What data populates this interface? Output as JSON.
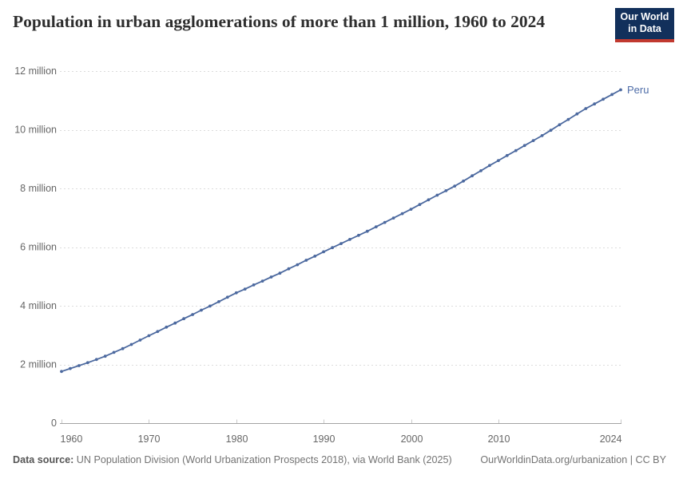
{
  "header": {
    "title": "Population in urban agglomerations of more than 1 million, 1960 to 2024",
    "logo": {
      "line1": "Our World",
      "line2": "in Data"
    }
  },
  "footer": {
    "source_label": "Data source:",
    "source_text": " UN Population Division (World Urbanization Prospects 2018), via World Bank (2025)",
    "right_text": "OurWorldinData.org/urbanization | CC BY"
  },
  "colors": {
    "line": "#4c699f",
    "series_label": "#4f6da8",
    "grid": "#dcdcdc",
    "axis": "#a3a3a3",
    "tick": "#c9c9c9",
    "axis_text": "#666666",
    "logo_bg": "#12305b",
    "logo_red": "#c1392f"
  },
  "chart_data": {
    "type": "line",
    "title": "Population in urban agglomerations of more than 1 million, 1960 to 2024",
    "xlabel": "",
    "ylabel": "",
    "unit": "people",
    "grid": "horizontal-dashed",
    "legend_position": "end-of-line-label",
    "xlim": [
      1960,
      2024
    ],
    "ylim": [
      0,
      12000000
    ],
    "x_ticks": [
      1960,
      1970,
      1980,
      1990,
      2000,
      2010,
      2024
    ],
    "y_ticks": [
      0,
      2000000,
      4000000,
      6000000,
      8000000,
      10000000,
      12000000
    ],
    "y_tick_labels": [
      "0",
      "2 million",
      "4 million",
      "6 million",
      "8 million",
      "10 million",
      "12 million"
    ],
    "years": [
      1960,
      1961,
      1962,
      1963,
      1964,
      1965,
      1966,
      1967,
      1968,
      1969,
      1970,
      1971,
      1972,
      1973,
      1974,
      1975,
      1976,
      1977,
      1978,
      1979,
      1980,
      1981,
      1982,
      1983,
      1984,
      1985,
      1986,
      1987,
      1988,
      1989,
      1990,
      1991,
      1992,
      1993,
      1994,
      1995,
      1996,
      1997,
      1998,
      1999,
      2000,
      2001,
      2002,
      2003,
      2004,
      2005,
      2006,
      2007,
      2008,
      2009,
      2010,
      2011,
      2012,
      2013,
      2014,
      2015,
      2016,
      2017,
      2018,
      2019,
      2020,
      2021,
      2022,
      2023,
      2024
    ],
    "series": [
      {
        "name": "Peru",
        "values": [
          1760000,
          1860000,
          1960000,
          2060000,
          2170000,
          2280000,
          2410000,
          2540000,
          2680000,
          2830000,
          2980000,
          3120000,
          3270000,
          3410000,
          3560000,
          3700000,
          3850000,
          3990000,
          4140000,
          4290000,
          4440000,
          4570000,
          4710000,
          4840000,
          4980000,
          5110000,
          5260000,
          5400000,
          5550000,
          5690000,
          5840000,
          5980000,
          6120000,
          6260000,
          6400000,
          6540000,
          6690000,
          6840000,
          6990000,
          7140000,
          7290000,
          7450000,
          7610000,
          7770000,
          7920000,
          8080000,
          8250000,
          8430000,
          8600000,
          8780000,
          8950000,
          9120000,
          9290000,
          9460000,
          9630000,
          9800000,
          9980000,
          10170000,
          10350000,
          10540000,
          10720000,
          10880000,
          11040000,
          11200000,
          11360000
        ]
      }
    ]
  }
}
